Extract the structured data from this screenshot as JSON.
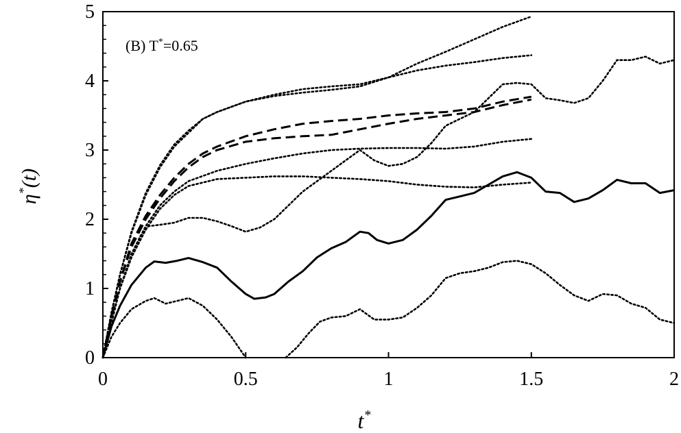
{
  "chart_data": {
    "type": "line",
    "annotation": {
      "main": "(B) T",
      "sup": "*",
      "rest": "=0.65"
    },
    "xlabel": {
      "main": "t",
      "sup": "*"
    },
    "ylabel": {
      "main": "η",
      "sup": "*",
      "rest": "(t)"
    },
    "xlim": [
      0,
      2
    ],
    "ylim": [
      0,
      5
    ],
    "xticks": [
      0,
      0.5,
      1,
      1.5,
      2
    ],
    "xtick_labels": [
      "0",
      "0.5",
      "1",
      "1.5",
      "2"
    ],
    "yticks": [
      0,
      1,
      2,
      3,
      4,
      5
    ],
    "ytick_labels": [
      "0",
      "1",
      "2",
      "3",
      "4",
      "5"
    ],
    "grid": false,
    "series": [
      {
        "style": "solid",
        "points": [
          [
            0,
            0
          ],
          [
            0.03,
            0.45
          ],
          [
            0.06,
            0.75
          ],
          [
            0.1,
            1.05
          ],
          [
            0.15,
            1.3
          ],
          [
            0.18,
            1.39
          ],
          [
            0.22,
            1.37
          ],
          [
            0.26,
            1.4
          ],
          [
            0.3,
            1.44
          ],
          [
            0.35,
            1.38
          ],
          [
            0.4,
            1.3
          ],
          [
            0.45,
            1.1
          ],
          [
            0.5,
            0.92
          ],
          [
            0.53,
            0.85
          ],
          [
            0.57,
            0.87
          ],
          [
            0.6,
            0.92
          ],
          [
            0.65,
            1.1
          ],
          [
            0.7,
            1.25
          ],
          [
            0.75,
            1.45
          ],
          [
            0.8,
            1.58
          ],
          [
            0.85,
            1.67
          ],
          [
            0.9,
            1.82
          ],
          [
            0.93,
            1.8
          ],
          [
            0.96,
            1.7
          ],
          [
            1.0,
            1.65
          ],
          [
            1.05,
            1.7
          ],
          [
            1.1,
            1.85
          ],
          [
            1.15,
            2.05
          ],
          [
            1.2,
            2.28
          ],
          [
            1.25,
            2.33
          ],
          [
            1.3,
            2.38
          ],
          [
            1.35,
            2.5
          ],
          [
            1.4,
            2.62
          ],
          [
            1.45,
            2.68
          ],
          [
            1.5,
            2.6
          ],
          [
            1.55,
            2.4
          ],
          [
            1.6,
            2.38
          ],
          [
            1.65,
            2.25
          ],
          [
            1.7,
            2.3
          ],
          [
            1.75,
            2.42
          ],
          [
            1.8,
            2.57
          ],
          [
            1.85,
            2.52
          ],
          [
            1.9,
            2.52
          ],
          [
            1.95,
            2.38
          ],
          [
            2.0,
            2.42
          ]
        ]
      },
      {
        "style": "dashed",
        "points": [
          [
            0,
            0
          ],
          [
            0.03,
            0.6
          ],
          [
            0.06,
            1.1
          ],
          [
            0.1,
            1.6
          ],
          [
            0.15,
            2.0
          ],
          [
            0.2,
            2.3
          ],
          [
            0.25,
            2.55
          ],
          [
            0.3,
            2.75
          ],
          [
            0.35,
            2.9
          ],
          [
            0.4,
            3.0
          ],
          [
            0.5,
            3.12
          ],
          [
            0.6,
            3.17
          ],
          [
            0.7,
            3.2
          ],
          [
            0.8,
            3.22
          ],
          [
            0.9,
            3.3
          ],
          [
            1.0,
            3.38
          ],
          [
            1.1,
            3.45
          ],
          [
            1.2,
            3.5
          ],
          [
            1.3,
            3.55
          ],
          [
            1.4,
            3.65
          ],
          [
            1.5,
            3.73
          ]
        ]
      },
      {
        "style": "dashed",
        "points": [
          [
            0,
            0
          ],
          [
            0.03,
            0.6
          ],
          [
            0.06,
            1.1
          ],
          [
            0.1,
            1.65
          ],
          [
            0.15,
            2.05
          ],
          [
            0.2,
            2.35
          ],
          [
            0.25,
            2.6
          ],
          [
            0.3,
            2.8
          ],
          [
            0.35,
            2.95
          ],
          [
            0.4,
            3.05
          ],
          [
            0.5,
            3.2
          ],
          [
            0.6,
            3.3
          ],
          [
            0.7,
            3.38
          ],
          [
            0.8,
            3.42
          ],
          [
            0.9,
            3.45
          ],
          [
            1.0,
            3.5
          ],
          [
            1.1,
            3.53
          ],
          [
            1.2,
            3.55
          ],
          [
            1.3,
            3.6
          ],
          [
            1.4,
            3.7
          ],
          [
            1.5,
            3.77
          ]
        ]
      },
      {
        "style": "dotted",
        "points": [
          [
            0,
            0
          ],
          [
            0.03,
            0.65
          ],
          [
            0.06,
            1.2
          ],
          [
            0.1,
            1.8
          ],
          [
            0.15,
            2.35
          ],
          [
            0.2,
            2.75
          ],
          [
            0.25,
            3.05
          ],
          [
            0.3,
            3.25
          ],
          [
            0.35,
            3.45
          ],
          [
            0.4,
            3.55
          ],
          [
            0.5,
            3.7
          ],
          [
            0.6,
            3.8
          ],
          [
            0.7,
            3.88
          ],
          [
            0.8,
            3.92
          ],
          [
            0.9,
            3.95
          ],
          [
            1.0,
            4.05
          ],
          [
            1.1,
            4.15
          ],
          [
            1.2,
            4.22
          ],
          [
            1.3,
            4.27
          ],
          [
            1.4,
            4.33
          ],
          [
            1.5,
            4.37
          ]
        ]
      },
      {
        "style": "dotted",
        "points": [
          [
            0,
            0
          ],
          [
            0.03,
            0.65
          ],
          [
            0.06,
            1.2
          ],
          [
            0.1,
            1.82
          ],
          [
            0.15,
            2.38
          ],
          [
            0.2,
            2.78
          ],
          [
            0.25,
            3.08
          ],
          [
            0.3,
            3.28
          ],
          [
            0.35,
            3.45
          ],
          [
            0.4,
            3.55
          ],
          [
            0.5,
            3.7
          ],
          [
            0.6,
            3.78
          ],
          [
            0.7,
            3.83
          ],
          [
            0.8,
            3.87
          ],
          [
            0.9,
            3.92
          ],
          [
            1.0,
            4.05
          ],
          [
            1.1,
            4.25
          ],
          [
            1.2,
            4.42
          ],
          [
            1.3,
            4.6
          ],
          [
            1.4,
            4.78
          ],
          [
            1.5,
            4.93
          ]
        ]
      },
      {
        "style": "dotted",
        "points": [
          [
            0,
            0
          ],
          [
            0.03,
            0.55
          ],
          [
            0.06,
            1.0
          ],
          [
            0.1,
            1.5
          ],
          [
            0.15,
            1.9
          ],
          [
            0.2,
            2.2
          ],
          [
            0.25,
            2.4
          ],
          [
            0.3,
            2.55
          ],
          [
            0.4,
            2.7
          ],
          [
            0.5,
            2.8
          ],
          [
            0.6,
            2.88
          ],
          [
            0.7,
            2.95
          ],
          [
            0.8,
            3.0
          ],
          [
            0.9,
            3.02
          ],
          [
            1.0,
            3.03
          ],
          [
            1.1,
            3.03
          ],
          [
            1.2,
            3.02
          ],
          [
            1.3,
            3.05
          ],
          [
            1.4,
            3.12
          ],
          [
            1.5,
            3.16
          ]
        ]
      },
      {
        "style": "dotted",
        "points": [
          [
            0,
            0
          ],
          [
            0.03,
            0.55
          ],
          [
            0.06,
            1.0
          ],
          [
            0.1,
            1.45
          ],
          [
            0.15,
            1.85
          ],
          [
            0.2,
            2.15
          ],
          [
            0.25,
            2.35
          ],
          [
            0.3,
            2.48
          ],
          [
            0.4,
            2.58
          ],
          [
            0.5,
            2.6
          ],
          [
            0.6,
            2.62
          ],
          [
            0.7,
            2.62
          ],
          [
            0.8,
            2.6
          ],
          [
            0.9,
            2.58
          ],
          [
            1.0,
            2.55
          ],
          [
            1.1,
            2.5
          ],
          [
            1.2,
            2.47
          ],
          [
            1.3,
            2.46
          ],
          [
            1.4,
            2.5
          ],
          [
            1.5,
            2.53
          ]
        ]
      },
      {
        "style": "dotted",
        "points": [
          [
            0,
            0
          ],
          [
            0.03,
            0.5
          ],
          [
            0.06,
            1.0
          ],
          [
            0.1,
            1.45
          ],
          [
            0.13,
            1.75
          ],
          [
            0.16,
            1.9
          ],
          [
            0.2,
            1.92
          ],
          [
            0.25,
            1.95
          ],
          [
            0.3,
            2.02
          ],
          [
            0.35,
            2.02
          ],
          [
            0.4,
            1.97
          ],
          [
            0.45,
            1.9
          ],
          [
            0.5,
            1.82
          ],
          [
            0.55,
            1.88
          ],
          [
            0.6,
            2.0
          ],
          [
            0.65,
            2.2
          ],
          [
            0.7,
            2.4
          ],
          [
            0.75,
            2.55
          ],
          [
            0.8,
            2.7
          ],
          [
            0.85,
            2.85
          ],
          [
            0.9,
            3.0
          ],
          [
            0.95,
            2.85
          ],
          [
            1.0,
            2.77
          ],
          [
            1.05,
            2.8
          ],
          [
            1.1,
            2.9
          ],
          [
            1.15,
            3.1
          ],
          [
            1.2,
            3.35
          ],
          [
            1.25,
            3.45
          ],
          [
            1.3,
            3.55
          ],
          [
            1.35,
            3.75
          ],
          [
            1.4,
            3.95
          ],
          [
            1.45,
            3.97
          ],
          [
            1.5,
            3.95
          ],
          [
            1.55,
            3.75
          ],
          [
            1.6,
            3.72
          ],
          [
            1.65,
            3.68
          ],
          [
            1.7,
            3.75
          ],
          [
            1.75,
            4.0
          ],
          [
            1.8,
            4.3
          ],
          [
            1.85,
            4.3
          ],
          [
            1.9,
            4.35
          ],
          [
            1.95,
            4.25
          ],
          [
            2.0,
            4.3
          ]
        ]
      },
      {
        "style": "dotted",
        "points": [
          [
            0,
            0
          ],
          [
            0.03,
            0.3
          ],
          [
            0.06,
            0.5
          ],
          [
            0.1,
            0.7
          ],
          [
            0.15,
            0.82
          ],
          [
            0.18,
            0.86
          ],
          [
            0.22,
            0.78
          ],
          [
            0.26,
            0.82
          ],
          [
            0.3,
            0.86
          ],
          [
            0.35,
            0.75
          ],
          [
            0.4,
            0.55
          ],
          [
            0.45,
            0.3
          ],
          [
            0.5,
            0.0
          ]
        ]
      },
      {
        "style": "dotted",
        "points": [
          [
            0.64,
            0.0
          ],
          [
            0.68,
            0.15
          ],
          [
            0.72,
            0.35
          ],
          [
            0.76,
            0.52
          ],
          [
            0.8,
            0.58
          ],
          [
            0.85,
            0.6
          ],
          [
            0.9,
            0.7
          ],
          [
            0.95,
            0.55
          ],
          [
            1.0,
            0.55
          ],
          [
            1.05,
            0.58
          ],
          [
            1.1,
            0.72
          ],
          [
            1.15,
            0.9
          ],
          [
            1.2,
            1.15
          ],
          [
            1.25,
            1.22
          ],
          [
            1.3,
            1.25
          ],
          [
            1.35,
            1.3
          ],
          [
            1.4,
            1.38
          ],
          [
            1.45,
            1.4
          ],
          [
            1.5,
            1.35
          ],
          [
            1.55,
            1.22
          ],
          [
            1.6,
            1.05
          ],
          [
            1.65,
            0.9
          ],
          [
            1.7,
            0.82
          ],
          [
            1.75,
            0.92
          ],
          [
            1.8,
            0.9
          ],
          [
            1.85,
            0.78
          ],
          [
            1.9,
            0.72
          ],
          [
            1.95,
            0.55
          ],
          [
            2.0,
            0.5
          ]
        ]
      }
    ]
  }
}
